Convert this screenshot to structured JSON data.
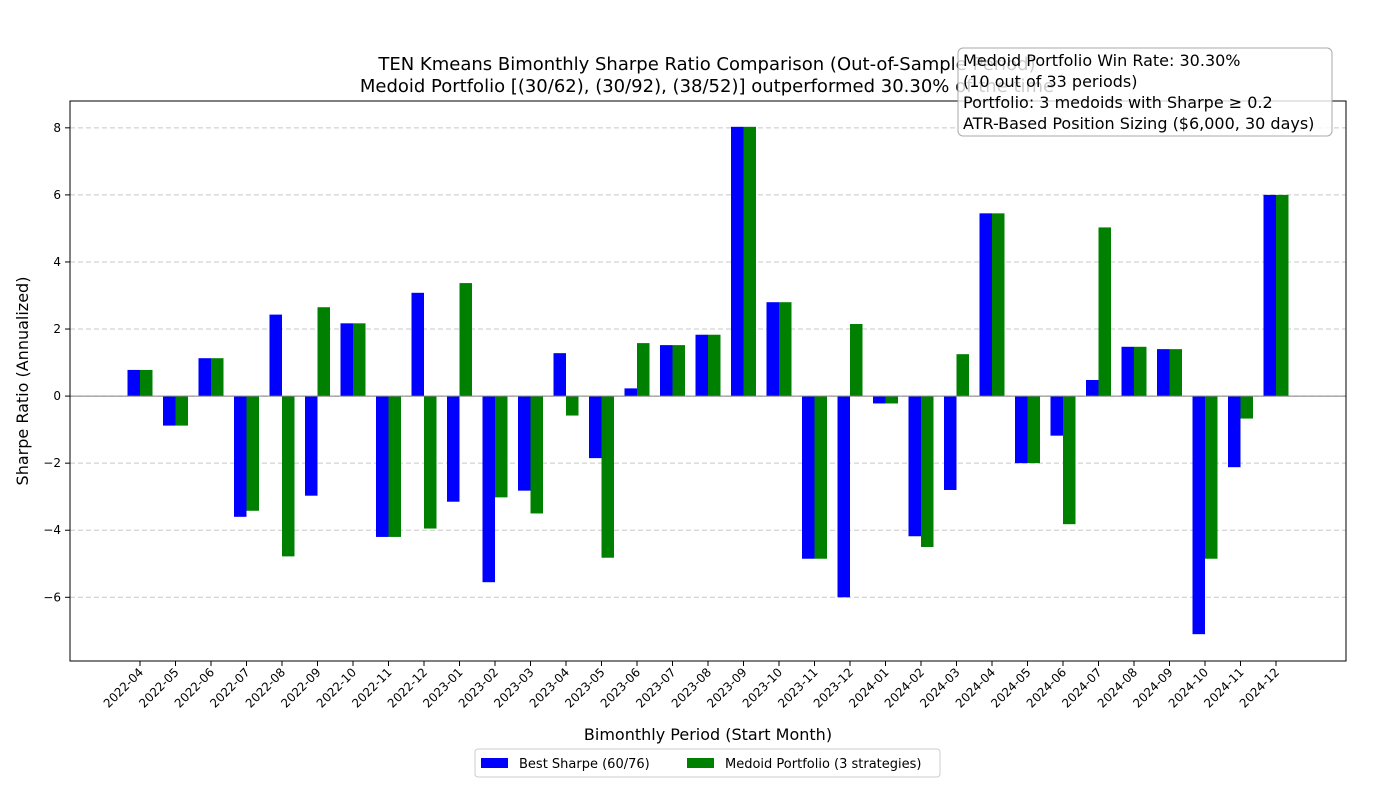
{
  "chart_data": {
    "type": "bar",
    "title_lines": [
      "TEN Kmeans Bimonthly Sharpe Ratio Comparison (Out-of-Sample Period)",
      "Medoid Portfolio [(30/62), (30/92), (38/52)] outperformed 30.30% of the time"
    ],
    "xlabel": "Bimonthly Period (Start Month)",
    "ylabel": "Sharpe Ratio (Annualized)",
    "ylim": [
      -7.9,
      8.8
    ],
    "yticks": [
      -6,
      -4,
      -2,
      0,
      2,
      4,
      6,
      8
    ],
    "grid": "y-dashed",
    "legend_position": "bottom-center",
    "categories": [
      "2022-04",
      "2022-05",
      "2022-06",
      "2022-07",
      "2022-08",
      "2022-09",
      "2022-10",
      "2022-11",
      "2022-12",
      "2023-01",
      "2023-02",
      "2023-03",
      "2023-04",
      "2023-05",
      "2023-06",
      "2023-07",
      "2023-08",
      "2023-09",
      "2023-10",
      "2023-11",
      "2023-12",
      "2024-01",
      "2024-02",
      "2024-03",
      "2024-04",
      "2024-05",
      "2024-06",
      "2024-07",
      "2024-08",
      "2024-09",
      "2024-10",
      "2024-11",
      "2024-12"
    ],
    "series": [
      {
        "name": "Best Sharpe (60/76)",
        "color": "#0000ff",
        "values": [
          0.78,
          -0.88,
          1.13,
          -3.6,
          2.43,
          -2.97,
          2.17,
          -4.2,
          3.08,
          -3.15,
          -5.55,
          -2.82,
          1.28,
          -1.85,
          0.23,
          1.52,
          1.83,
          8.03,
          2.8,
          -4.85,
          -6.0,
          -0.22,
          -4.18,
          -2.8,
          5.45,
          -2.0,
          -1.18,
          0.48,
          1.47,
          1.4,
          -7.1,
          -2.12,
          6.0
        ]
      },
      {
        "name": "Medoid Portfolio (3 strategies)",
        "color": "#008000",
        "values": [
          0.78,
          -0.88,
          1.13,
          -3.42,
          -4.78,
          2.65,
          2.17,
          -4.2,
          -3.95,
          3.37,
          -3.02,
          -3.5,
          -0.58,
          -4.82,
          1.58,
          1.52,
          1.83,
          8.03,
          2.8,
          -4.85,
          2.15,
          -0.22,
          -4.5,
          1.25,
          5.45,
          -2.0,
          -3.82,
          5.03,
          1.47,
          1.4,
          -4.85,
          -0.67,
          6.0
        ]
      }
    ],
    "annotation_lines": [
      "Medoid Portfolio Win Rate: 30.30%",
      "(10 out of 33 periods)",
      "Portfolio: 3 medoids with Sharpe ≥ 0.2",
      "ATR-Based Position Sizing ($6,000, 30 days)"
    ]
  }
}
